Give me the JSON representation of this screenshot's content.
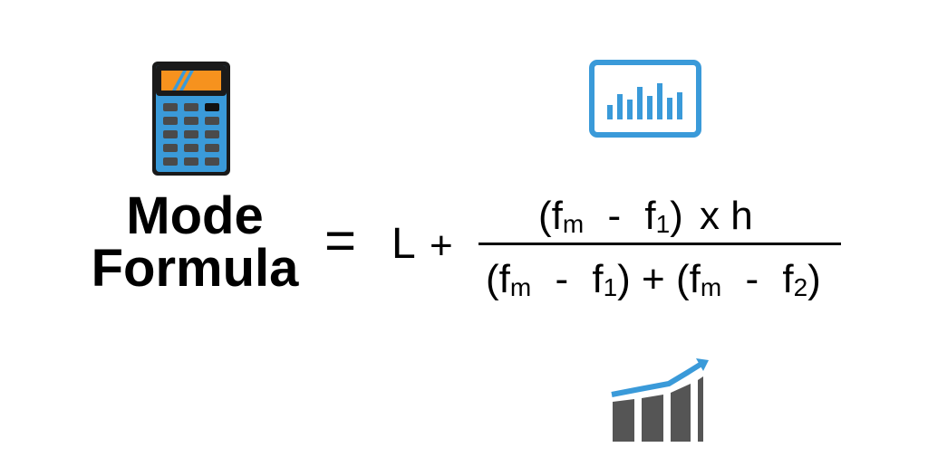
{
  "title": {
    "line1": "Mode",
    "line2": "Formula"
  },
  "formula": {
    "equals": "=",
    "L": "L",
    "plus": "+",
    "numerator": {
      "open": "(f",
      "fm_sub": "m",
      "minus": "-",
      "f1": "f",
      "f1_sub": "1",
      "close": ")",
      "times": "x",
      "h": "h"
    },
    "denominator": {
      "open1": "(f",
      "fm_sub1": "m",
      "minus1": "-",
      "f1": "f",
      "f1_sub": "1",
      "close1": ")",
      "plus": "+",
      "open2": "(f",
      "fm_sub2": "m",
      "minus2": "-",
      "f2": "f",
      "f2_sub": "2",
      "close2": ")"
    }
  },
  "icons": {
    "calculator": "calculator-icon",
    "chart_monitor": "bar-chart-monitor-icon",
    "growth_chart": "growth-chart-icon"
  },
  "colors": {
    "blue": "#3a9ad9",
    "orange": "#f6921e",
    "dark": "#1a1a1a",
    "grey": "#555555",
    "key": "#4a4a4a"
  }
}
